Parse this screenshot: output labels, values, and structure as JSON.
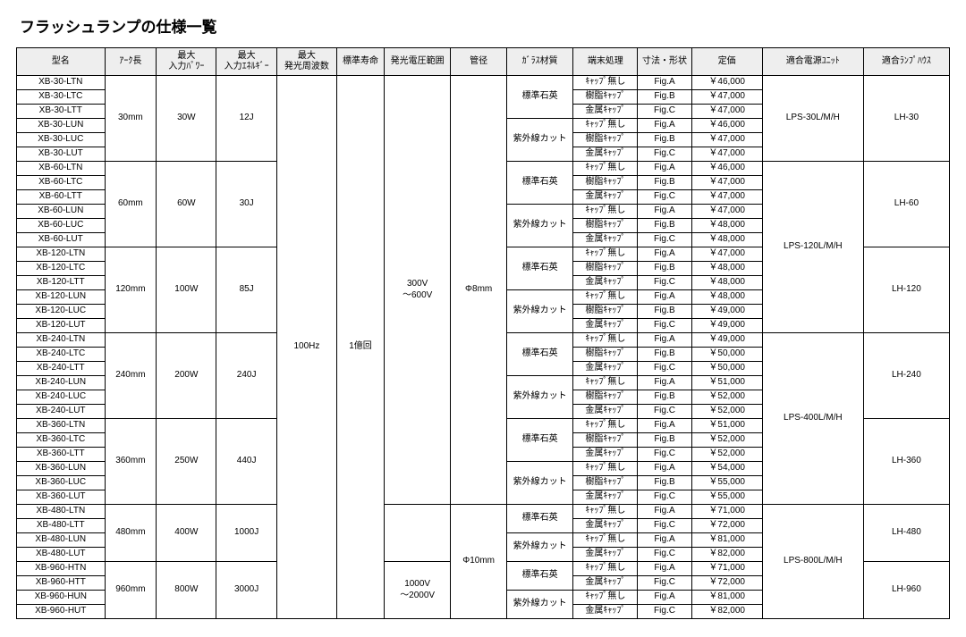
{
  "title": "フラッシュランプの仕様一覧",
  "headers": [
    "型名",
    "ｱｰｸ長",
    "最大\n入力ﾊﾟﾜｰ",
    "最大\n入力ｴﾈﾙｷﾞｰ",
    "最大\n発光周波数",
    "標準寿命",
    "発光電圧範囲",
    "管径",
    "ｶﾞﾗｽ材質",
    "端末処理",
    "寸法・形状",
    "定価",
    "適合電源ﾕﾆｯﾄ",
    "適合ﾗﾝﾌﾟﾊｳｽ"
  ],
  "shared": {
    "freq": "100Hz",
    "life": "1億回",
    "volt1": "300V\n～600V",
    "volt2": "1000V\n～2000V",
    "dia1": "Φ8mm",
    "dia2": "Φ10mm",
    "glass_std": "標準石英",
    "glass_uv": "紫外線カット",
    "term": [
      "ｷｬｯﾌﾟ無し",
      "樹脂ｷｬｯﾌﾟ",
      "金属ｷｬｯﾌﾟ"
    ],
    "figs": [
      "Fig.A",
      "Fig.B",
      "Fig.C"
    ]
  },
  "groups": [
    {
      "arc": "30mm",
      "power": "30W",
      "energy": "12J",
      "psu": "LPS-30L/M/H",
      "house": "LH-30",
      "models": [
        "XB-30-LTN",
        "XB-30-LTC",
        "XB-30-LTT",
        "XB-30-LUN",
        "XB-30-LUC",
        "XB-30-LUT"
      ],
      "prices": [
        "￥46,000",
        "￥47,000",
        "￥47,000",
        "￥46,000",
        "￥47,000",
        "￥47,000"
      ]
    },
    {
      "arc": "60mm",
      "power": "60W",
      "energy": "30J",
      "psu": "LPS-120L/M/H",
      "house": "LH-60",
      "models": [
        "XB-60-LTN",
        "XB-60-LTC",
        "XB-60-LTT",
        "XB-60-LUN",
        "XB-60-LUC",
        "XB-60-LUT"
      ],
      "prices": [
        "￥46,000",
        "￥47,000",
        "￥47,000",
        "￥47,000",
        "￥48,000",
        "￥48,000"
      ]
    },
    {
      "arc": "120mm",
      "power": "100W",
      "energy": "85J",
      "psu": "LPS-120L/M/H",
      "house": "LH-120",
      "models": [
        "XB-120-LTN",
        "XB-120-LTC",
        "XB-120-LTT",
        "XB-120-LUN",
        "XB-120-LUC",
        "XB-120-LUT"
      ],
      "prices": [
        "￥47,000",
        "￥48,000",
        "￥48,000",
        "￥48,000",
        "￥49,000",
        "￥49,000"
      ]
    },
    {
      "arc": "240mm",
      "power": "200W",
      "energy": "240J",
      "psu": "LPS-400L/M/H",
      "house": "LH-240",
      "models": [
        "XB-240-LTN",
        "XB-240-LTC",
        "XB-240-LTT",
        "XB-240-LUN",
        "XB-240-LUC",
        "XB-240-LUT"
      ],
      "prices": [
        "￥49,000",
        "￥50,000",
        "￥50,000",
        "￥51,000",
        "￥52,000",
        "￥52,000"
      ]
    },
    {
      "arc": "360mm",
      "power": "250W",
      "energy": "440J",
      "psu": "LPS-400L/M/H",
      "house": "LH-360",
      "models": [
        "XB-360-LTN",
        "XB-360-LTC",
        "XB-360-LTT",
        "XB-360-LUN",
        "XB-360-LUC",
        "XB-360-LUT"
      ],
      "prices": [
        "￥51,000",
        "￥52,000",
        "￥52,000",
        "￥54,000",
        "￥55,000",
        "￥55,000"
      ]
    },
    {
      "arc": "480mm",
      "power": "400W",
      "energy": "1000J",
      "psu": "LPS-800L/M/H",
      "house": "LH-480",
      "models": [
        "XB-480-LTN",
        "XB-480-LTT",
        "XB-480-LUN",
        "XB-480-LUT"
      ],
      "prices": [
        "￥71,000",
        "￥72,000",
        "￥81,000",
        "￥82,000"
      ],
      "short": true
    },
    {
      "arc": "960mm",
      "power": "800W",
      "energy": "3000J",
      "psu": "LPS-800L/M/H",
      "house": "LH-960",
      "models": [
        "XB-960-HTN",
        "XB-960-HTT",
        "XB-960-HUN",
        "XB-960-HUT"
      ],
      "prices": [
        "￥71,000",
        "￥72,000",
        "￥81,000",
        "￥82,000"
      ],
      "short": true
    }
  ]
}
